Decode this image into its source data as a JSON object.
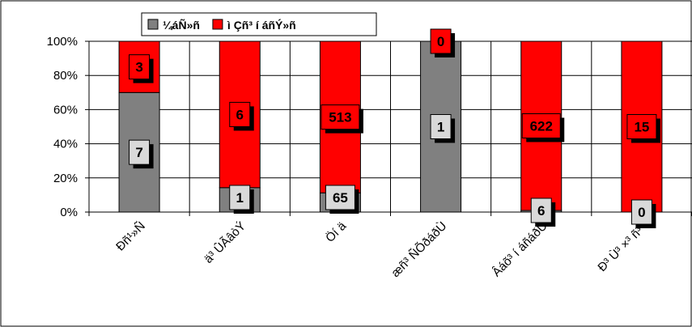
{
  "chart_data": {
    "type": "bar",
    "stacked": "percent",
    "categories": [
      "Ðñ¹»Ñ",
      "ä³ ÛÃâòÝ",
      "Öí ä",
      "æñ³ ÑÕðáðÙ",
      "Âáõ³ í áñáðÙ",
      "Ð³ Ù³ ×³ ñ³ Ï"
    ],
    "series": [
      {
        "name": "¼áÑ»ñ",
        "color": "#808080",
        "values": [
          7,
          1,
          65,
          1,
          6,
          0
        ]
      },
      {
        "name": "ì Çñ³ í áñÝ»ñ",
        "color": "#ff0000",
        "values": [
          3,
          6,
          513,
          0,
          622,
          15
        ]
      }
    ],
    "y_ticks": [
      "0%",
      "20%",
      "40%",
      "60%",
      "80%",
      "100%"
    ],
    "ylim": [
      0,
      100
    ],
    "grid": true,
    "legend_position": "top"
  }
}
